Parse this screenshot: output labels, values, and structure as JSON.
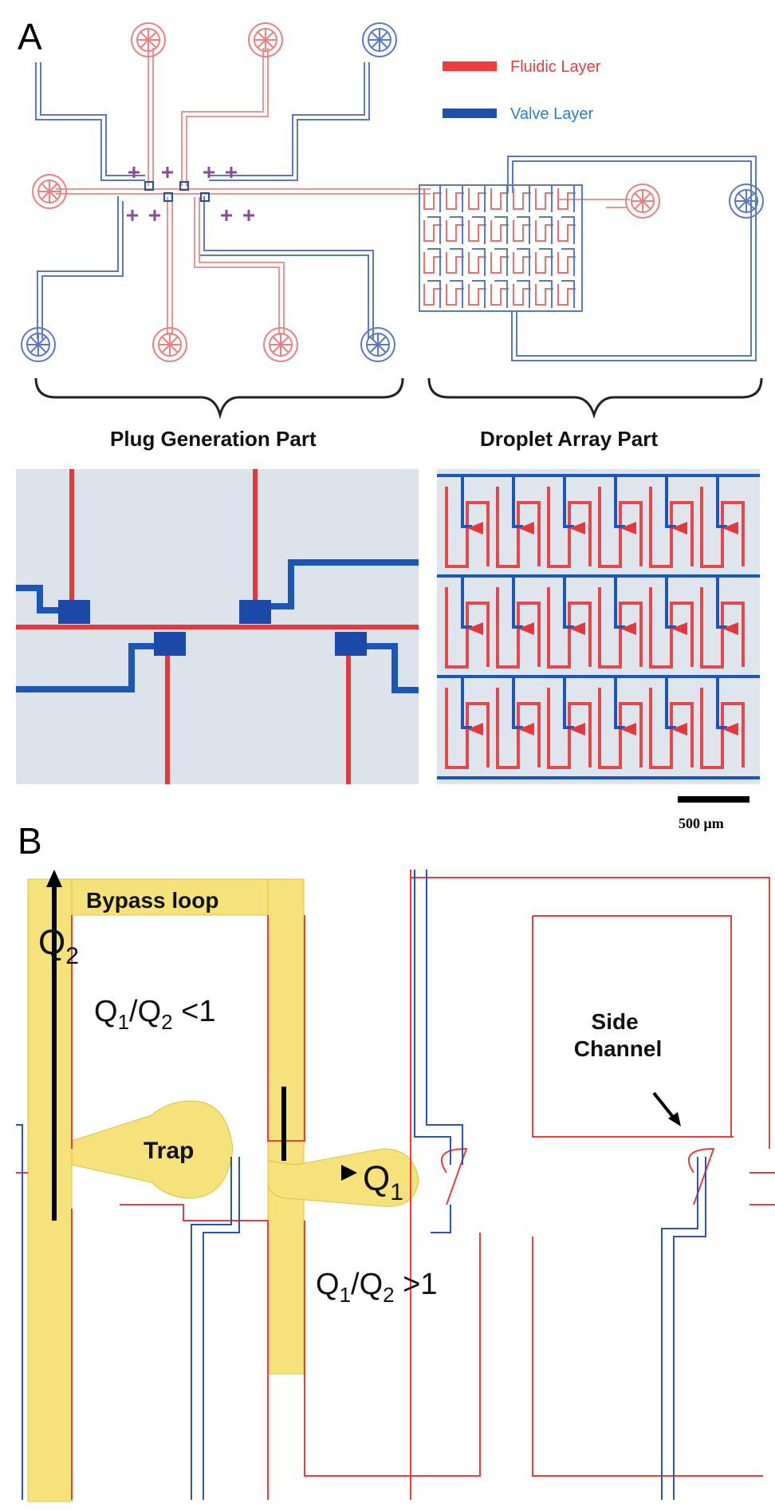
{
  "panels": {
    "a_letter": "A",
    "b_letter": "B"
  },
  "legend": {
    "fluidic_label": "Fluidic Layer",
    "valve_label": "Valve Layer",
    "fluidic_color": "#ef3b3b",
    "valve_color": "#1f4fa8",
    "label_color": "#2a7fd0"
  },
  "parts": {
    "plug_generation": "Plug Generation Part",
    "droplet_array": "Droplet Array Part"
  },
  "scale_bar": {
    "label": "500 μm"
  },
  "panel_b": {
    "bypass_loop": "Bypass loop",
    "q2_main": "Q",
    "q2_sub": "2",
    "ratio_lt_pre": "Q",
    "ratio_lt_sub1": "1",
    "ratio_lt_mid": "/Q",
    "ratio_lt_sub2": "2",
    "ratio_lt_post": " <1",
    "trap": "Trap",
    "q1_main": "Q",
    "q1_sub": "1",
    "ratio_gt_pre": "Q",
    "ratio_gt_sub1": "1",
    "ratio_gt_mid": "/Q",
    "ratio_gt_sub2": "2",
    "ratio_gt_post": " >1",
    "side_channel_line1": "Side",
    "side_channel_line2": "Channel",
    "highlight_color": "#f5e27a"
  }
}
